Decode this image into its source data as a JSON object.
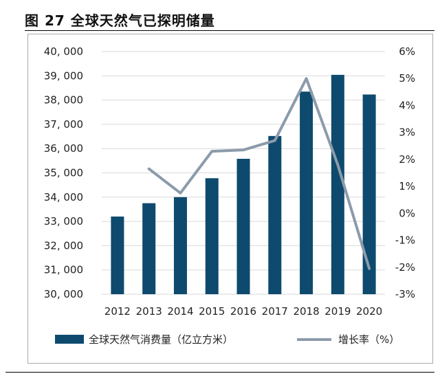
{
  "page": {
    "title": "图 27 全球天然气已探明储量"
  },
  "chart_data": {
    "type": "bar",
    "categories": [
      "2012",
      "2013",
      "2014",
      "2015",
      "2016",
      "2017",
      "2018",
      "2019",
      "2020"
    ],
    "series": [
      {
        "name": "全球天然气消费量（亿立方米）",
        "type": "bar",
        "axis": "left",
        "color": "#0e4a6e",
        "values": [
          33200,
          33750,
          34000,
          34780,
          35580,
          36520,
          38350,
          39040,
          38230
        ]
      },
      {
        "name": "增长率（%）",
        "type": "line",
        "axis": "right",
        "color": "#8c9bab",
        "values": [
          null,
          1.65,
          0.75,
          2.3,
          2.35,
          2.7,
          5.0,
          1.8,
          -2.05
        ]
      }
    ],
    "left_axis": {
      "ylim": [
        30000,
        40000
      ],
      "ticks": [
        30000,
        31000,
        32000,
        33000,
        34000,
        35000,
        36000,
        37000,
        38000,
        39000,
        40000
      ],
      "tick_labels": [
        "30, 000",
        "31, 000",
        "32, 000",
        "33, 000",
        "34, 000",
        "35, 000",
        "36, 000",
        "37, 000",
        "38, 000",
        "39, 000",
        "40, 000"
      ]
    },
    "right_axis": {
      "ylim": [
        -3,
        6
      ],
      "ticks": [
        -3,
        -2,
        -1,
        0,
        1,
        2,
        3,
        4,
        5,
        6
      ],
      "tick_labels": [
        "-3%",
        "-2%",
        "-1%",
        "0%",
        "1%",
        "2%",
        "3%",
        "4%",
        "5%",
        "6%"
      ]
    },
    "grid": true,
    "legend_position": "bottom"
  }
}
